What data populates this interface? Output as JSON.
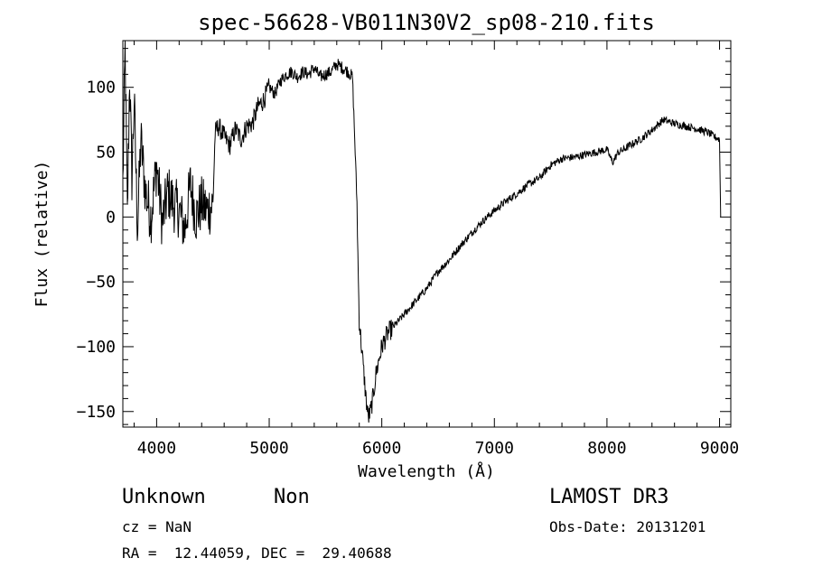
{
  "chart_data": {
    "type": "line",
    "title": "spec-56628-VB011N30V2_sp08-210.fits",
    "xlabel": "Wavelength (Å)",
    "ylabel": "Flux (relative)",
    "xlim": [
      3700,
      9100
    ],
    "ylim": [
      -162,
      136
    ],
    "xticks": [
      4000,
      5000,
      6000,
      7000,
      8000,
      9000
    ],
    "yticks": [
      -150,
      -100,
      -50,
      0,
      50,
      100
    ],
    "ytick_labels": [
      "−150",
      "−100",
      "−50",
      "0",
      "50",
      "100"
    ],
    "grid": false,
    "series": [
      {
        "x": [
          3700,
          3720,
          3740,
          3760,
          3780,
          3800,
          3830,
          3860,
          3900,
          3950,
          4000,
          4050,
          4100,
          4150,
          4200,
          4250,
          4300,
          4350,
          4400,
          4450,
          4500,
          4520,
          4550,
          4600,
          4650,
          4700,
          4750,
          4800,
          4850,
          4900,
          4950,
          5000,
          5050,
          5100,
          5150,
          5200,
          5250,
          5300,
          5350,
          5400,
          5450,
          5500,
          5550,
          5600,
          5650,
          5700,
          5740,
          5760,
          5780,
          5790,
          5800,
          5820,
          5840,
          5860,
          5880,
          5900,
          5920,
          5950,
          6000,
          6050,
          6100,
          6150,
          6200,
          6300,
          6400,
          6500,
          6600,
          6700,
          6800,
          6900,
          7000,
          7100,
          7200,
          7300,
          7400,
          7500,
          7600,
          7700,
          7800,
          7900,
          8000,
          8050,
          8100,
          8150,
          8200,
          8300,
          8400,
          8500,
          8600,
          8700,
          8800,
          8900,
          8950,
          9000,
          9010
        ],
        "y": [
          25,
          130,
          0,
          110,
          30,
          90,
          -10,
          60,
          20,
          0,
          40,
          -5,
          20,
          10,
          5,
          -10,
          25,
          0,
          10,
          5,
          10,
          65,
          70,
          62,
          55,
          68,
          60,
          70,
          72,
          85,
          90,
          100,
          95,
          105,
          110,
          112,
          108,
          112,
          110,
          115,
          108,
          110,
          112,
          118,
          115,
          112,
          108,
          60,
          10,
          -40,
          -80,
          -100,
          -120,
          -140,
          -155,
          -150,
          -140,
          -120,
          -100,
          -90,
          -85,
          -80,
          -75,
          -65,
          -55,
          -42,
          -33,
          -22,
          -12,
          -3,
          5,
          12,
          18,
          25,
          30,
          40,
          45,
          46,
          48,
          50,
          52,
          42,
          50,
          52,
          55,
          60,
          67,
          75,
          72,
          70,
          68,
          65,
          62,
          60,
          0
        ]
      }
    ]
  },
  "info": {
    "object_class": "Unknown",
    "object_subclass": "Non",
    "cz": "cz = NaN",
    "coords": "RA =  12.44059, DEC =  29.40688",
    "survey": "LAMOST DR3",
    "obs_date": "Obs-Date: 20131201"
  }
}
